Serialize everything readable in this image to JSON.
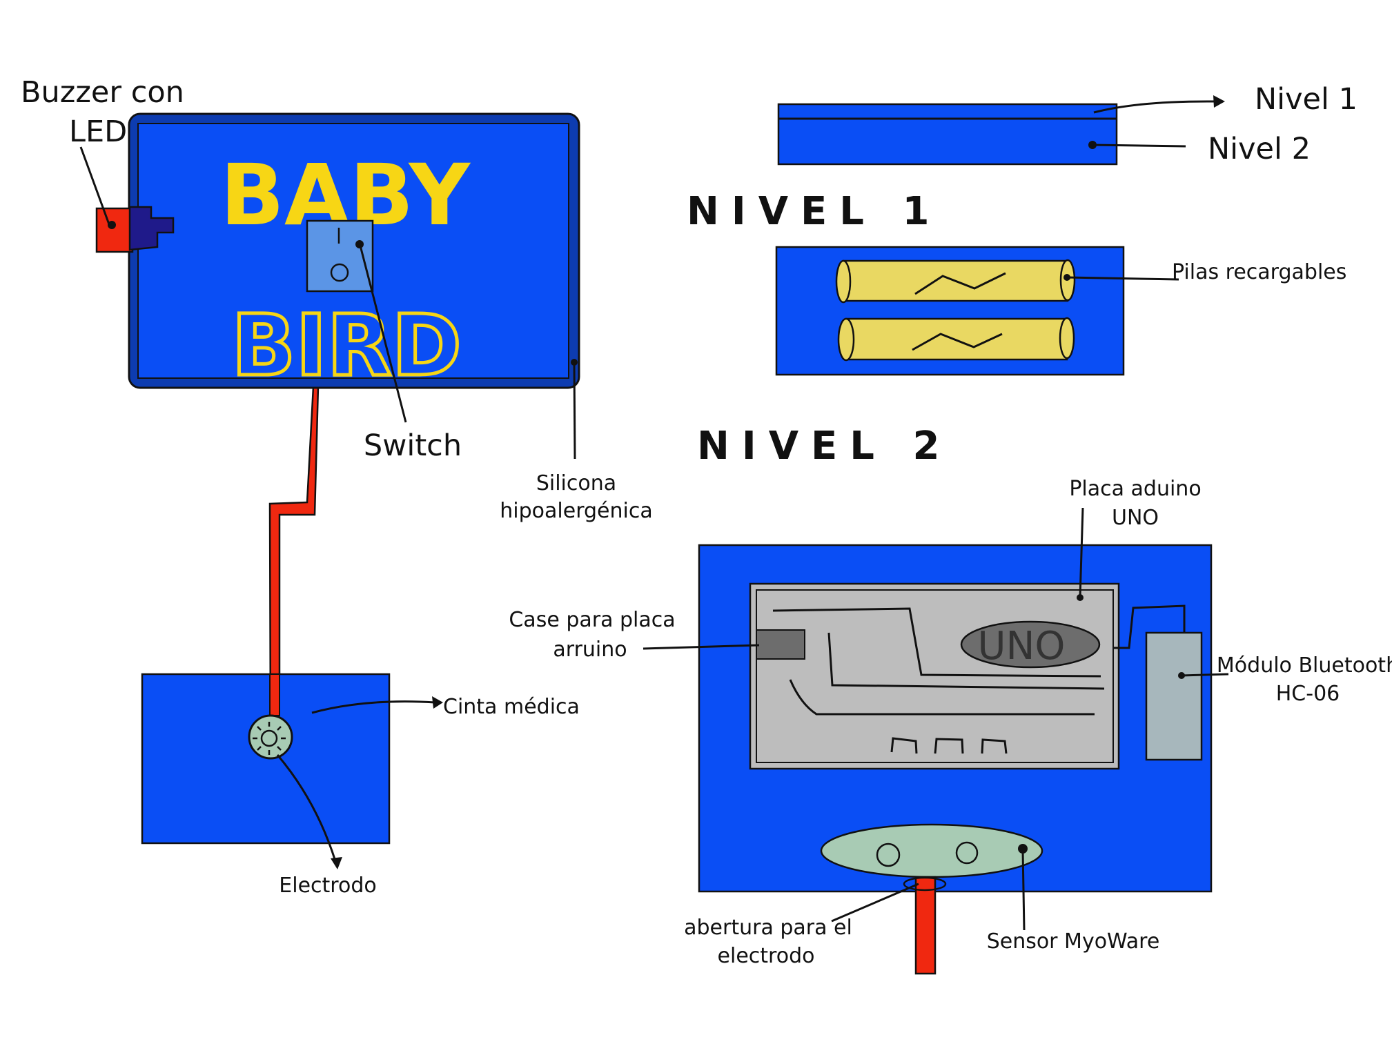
{
  "device": {
    "title_top": "BABY",
    "title_bottom": "BIRD"
  },
  "labels": {
    "buzzer_line1": "Buzzer con",
    "buzzer_line2": "LED",
    "switch": "Switch",
    "silicona_line1": "Silicona",
    "silicona_line2": "hipoalergénica",
    "cinta": "Cinta médica",
    "electrodo": "Electrodo",
    "nivel1_tag": "Nivel 1",
    "nivel2_tag": "Nivel 2",
    "pilas": "Pilas recargables",
    "placa_line1": "Placa aduino",
    "placa_line2": "UNO",
    "case_line1": "Case para placa",
    "case_line2": "arruino",
    "bluetooth_line1": "Módulo Bluetooth",
    "bluetooth_line2": "HC-06",
    "abertura_line1": "abertura para el",
    "abertura_line2": "electrodo",
    "sensor": "Sensor MyoWare"
  },
  "headings": {
    "nivel1": "NIVEL 1",
    "nivel2": "NIVEL 2"
  },
  "board": {
    "chip_label": "UNO"
  },
  "colors": {
    "device_blue": "#0a4ef5",
    "frame_blue": "#0d3cb0",
    "title_yellow": "#f7d615",
    "cable_red": "#f02810",
    "battery_yellow": "#e9d862",
    "board_grey": "#bdbdbd",
    "module_grey": "#a7b7bc",
    "sensor_green": "#a8cbb4",
    "switch_blue": "#5b95e6",
    "buzzer_navy": "#1f1a8a"
  }
}
